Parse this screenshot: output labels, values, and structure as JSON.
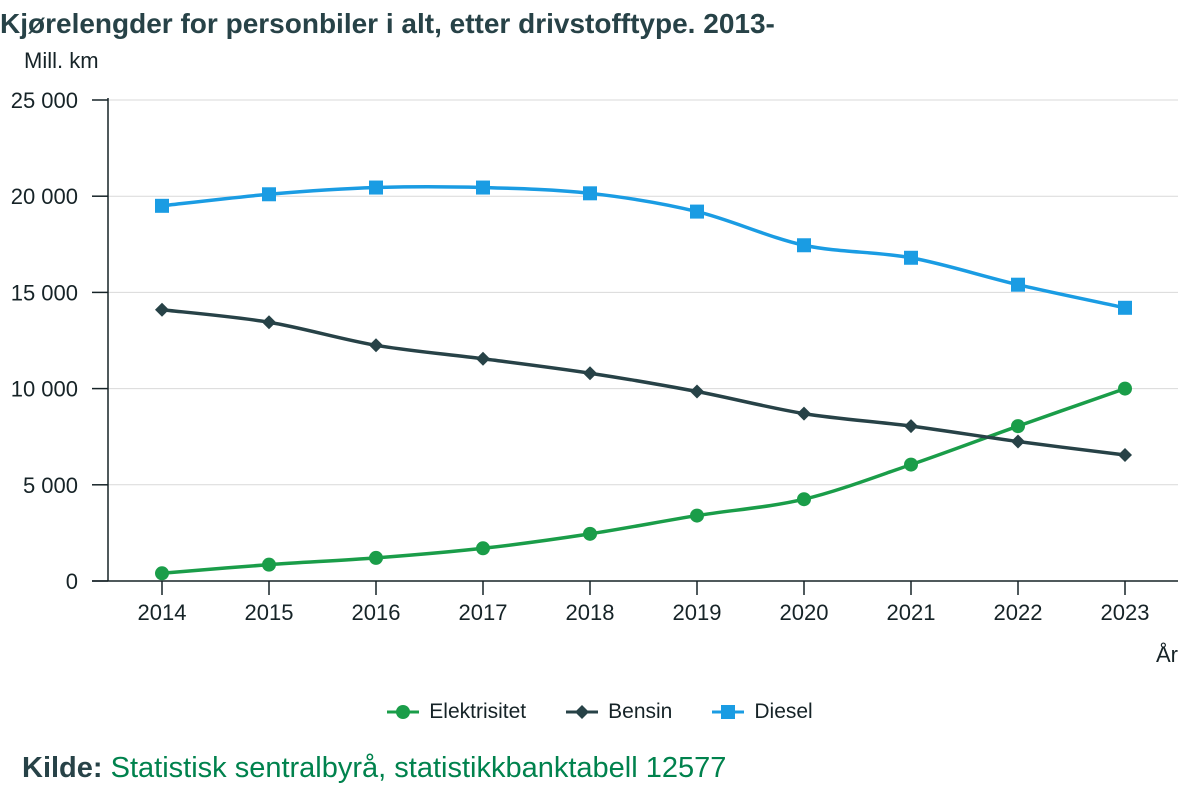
{
  "chart_data": {
    "type": "line",
    "title": "Kjørelengder for personbiler i alt, etter drivstofftype. 2013-",
    "ylabel": "Mill. km",
    "xlabel": "År",
    "x": [
      "2014",
      "2015",
      "2016",
      "2017",
      "2018",
      "2019",
      "2020",
      "2021",
      "2022",
      "2023"
    ],
    "ylim": [
      0,
      25000
    ],
    "yticks": [
      0,
      5000,
      10000,
      15000,
      20000,
      25000
    ],
    "ytick_labels": [
      "0",
      "5 000",
      "10 000",
      "15 000",
      "20 000",
      "25 000"
    ],
    "grid": true,
    "legend_position": "bottom",
    "series": [
      {
        "name": "Elektrisitet",
        "color": "#1a9d49",
        "marker": "circle",
        "values": [
          400,
          850,
          1200,
          1700,
          2450,
          3400,
          4250,
          6050,
          8050,
          10000
        ]
      },
      {
        "name": "Bensin",
        "color": "#274247",
        "marker": "diamond",
        "values": [
          14100,
          13450,
          12250,
          11550,
          10800,
          9850,
          8700,
          8050,
          7250,
          6550
        ]
      },
      {
        "name": "Diesel",
        "color": "#1a9ce3",
        "marker": "square",
        "values": [
          19500,
          20100,
          20450,
          20450,
          20150,
          19200,
          17450,
          16800,
          15400,
          14200
        ]
      }
    ]
  },
  "source": {
    "label": "Kilde:",
    "text": "Statistisk sentralbyrå, statistikkbanktabell 12577"
  }
}
